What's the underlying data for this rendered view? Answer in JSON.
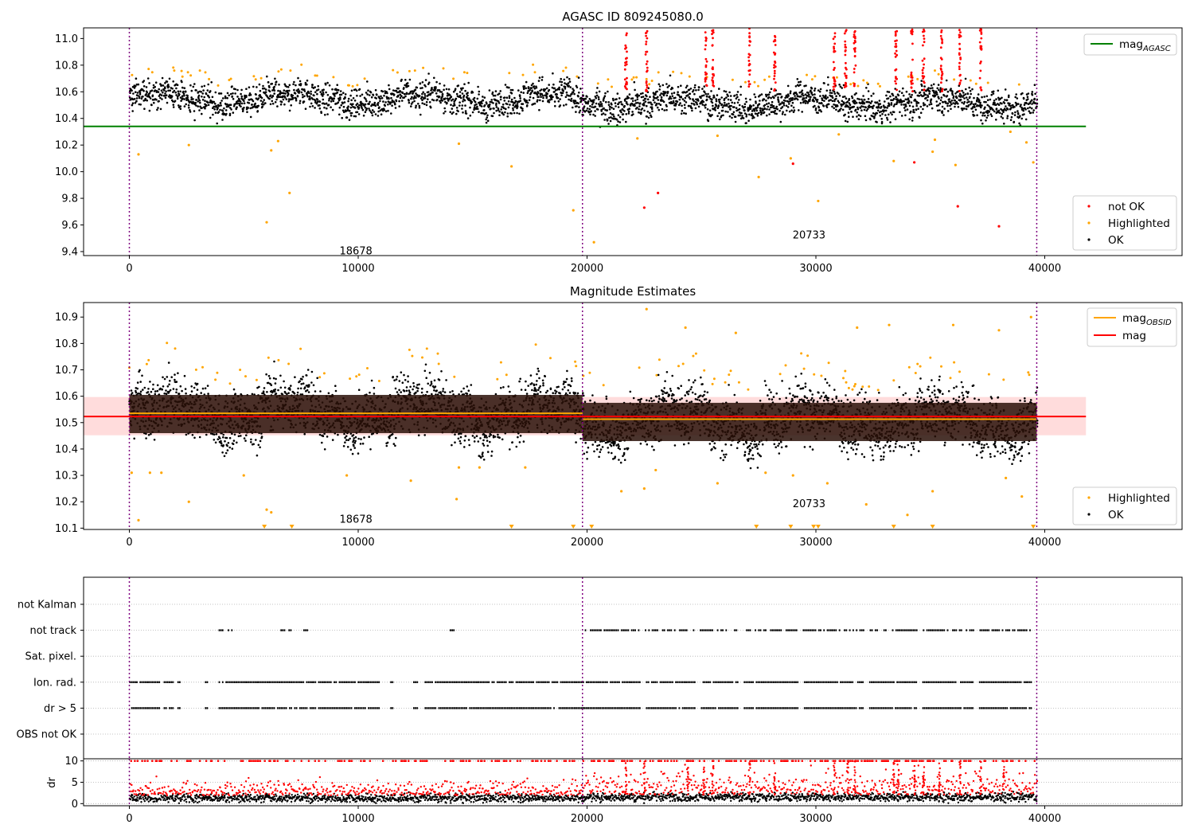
{
  "chart_data": [
    {
      "type": "scatter",
      "title": "AGASC ID 809245080.0",
      "xlim": [
        -2000,
        46000
      ],
      "ylim": [
        9.37,
        11.08
      ],
      "xticks": [
        0,
        10000,
        20000,
        30000,
        40000
      ],
      "yticks": [
        9.4,
        9.6,
        9.8,
        10.0,
        10.2,
        10.4,
        10.6,
        10.8,
        11.0
      ],
      "ytick_labels": [
        "9.4",
        "9.6",
        "9.8",
        "10.0",
        "10.2",
        "10.4",
        "10.6",
        "10.8",
        "11.0"
      ],
      "obsid_boundaries": [
        0,
        19800,
        39650
      ],
      "obsid_labels": [
        {
          "text": "18678",
          "x": 9900,
          "y": 9.38
        },
        {
          "text": "20733",
          "x": 29700,
          "y": 9.5
        }
      ],
      "reference_line": {
        "name": "mag",
        "subscript": "AGASC",
        "value": 10.34,
        "x_range": [
          -2000,
          41800
        ],
        "color": "#008000"
      },
      "bands": [
        {
          "x_range": [
            0,
            19800
          ],
          "median": 10.55,
          "spread": 0.1
        },
        {
          "x_range": [
            19800,
            39650
          ],
          "median": 10.52,
          "spread": 0.1
        }
      ],
      "red_excursions": [
        21700,
        22600,
        25200,
        25500,
        27100,
        28200,
        30800,
        31300,
        31700,
        33500,
        34200,
        34700,
        35500,
        36300,
        37200
      ],
      "outliers": {
        "highlighted": [
          [
            400,
            10.13
          ],
          [
            2600,
            10.2
          ],
          [
            6000,
            9.62
          ],
          [
            6200,
            10.16
          ],
          [
            7000,
            9.84
          ],
          [
            6500,
            10.23
          ],
          [
            14400,
            10.21
          ],
          [
            16700,
            10.04
          ],
          [
            19400,
            9.71
          ],
          [
            20300,
            9.47
          ],
          [
            22200,
            10.25
          ],
          [
            25700,
            10.27
          ],
          [
            27500,
            9.96
          ],
          [
            28900,
            10.1
          ],
          [
            30100,
            9.78
          ],
          [
            31000,
            10.28
          ],
          [
            33400,
            10.08
          ],
          [
            35200,
            10.24
          ],
          [
            35100,
            10.15
          ],
          [
            36100,
            10.05
          ],
          [
            38500,
            10.3
          ],
          [
            39200,
            10.22
          ],
          [
            39500,
            10.07
          ]
        ],
        "not_ok": [
          [
            22500,
            9.73
          ],
          [
            23100,
            9.84
          ],
          [
            29000,
            10.06
          ],
          [
            34300,
            10.07
          ],
          [
            36200,
            9.74
          ],
          [
            38000,
            9.59
          ]
        ]
      },
      "legend_upper": [
        {
          "label": "mag",
          "subscript": "AGASC",
          "color": "#008000"
        }
      ],
      "legend_lower": [
        {
          "label": "not OK",
          "color": "#ff0000"
        },
        {
          "label": "Highlighted",
          "color": "#ffa500"
        },
        {
          "label": "OK",
          "color": "#000000"
        }
      ]
    },
    {
      "type": "scatter",
      "title": "Magnitude Estimates",
      "xlim": [
        -2000,
        46000
      ],
      "ylim": [
        10.095,
        10.955
      ],
      "xticks": [
        0,
        10000,
        20000,
        30000,
        40000
      ],
      "yticks": [
        10.1,
        10.2,
        10.3,
        10.4,
        10.5,
        10.6,
        10.7,
        10.8,
        10.9
      ],
      "ytick_labels": [
        "10.1",
        "10.2",
        "10.3",
        "10.4",
        "10.5",
        "10.6",
        "10.7",
        "10.8",
        "10.9"
      ],
      "obsid_boundaries": [
        0,
        19800,
        39650
      ],
      "obsid_labels": [
        {
          "text": "18678",
          "x": 9900,
          "y": 10.12
        },
        {
          "text": "20733",
          "x": 29700,
          "y": 10.18
        }
      ],
      "mag_line": {
        "name": "mag",
        "value": 10.523,
        "band": [
          10.452,
          10.597
        ],
        "x_range": [
          -2000,
          41800
        ],
        "color": "#ff0000"
      },
      "obsid_mag": [
        {
          "x_range": [
            0,
            19800
          ],
          "value": 10.535
        },
        {
          "x_range": [
            19800,
            39650
          ],
          "value": 10.513
        }
      ],
      "bands": [
        {
          "x_range": [
            0,
            19800
          ],
          "median": 10.54,
          "spread": 0.1
        },
        {
          "x_range": [
            19800,
            39650
          ],
          "median": 10.51,
          "spread": 0.1
        }
      ],
      "outliers": {
        "highlighted": [
          [
            100,
            10.31
          ],
          [
            400,
            10.13
          ],
          [
            900,
            10.31
          ],
          [
            1400,
            10.31
          ],
          [
            2600,
            10.2
          ],
          [
            5000,
            10.3
          ],
          [
            6000,
            10.17
          ],
          [
            6200,
            10.16
          ],
          [
            9500,
            10.3
          ],
          [
            12300,
            10.28
          ],
          [
            14300,
            10.21
          ],
          [
            14400,
            10.33
          ],
          [
            15300,
            10.33
          ],
          [
            17300,
            10.33
          ],
          [
            21500,
            10.24
          ],
          [
            22500,
            10.25
          ],
          [
            23000,
            10.32
          ],
          [
            25700,
            10.27
          ],
          [
            27800,
            10.31
          ],
          [
            29000,
            10.3
          ],
          [
            30500,
            10.27
          ],
          [
            32200,
            10.19
          ],
          [
            34000,
            10.15
          ],
          [
            35100,
            10.24
          ],
          [
            38300,
            10.29
          ],
          [
            39000,
            10.22
          ],
          [
            22600,
            10.93
          ],
          [
            24300,
            10.86
          ],
          [
            26500,
            10.84
          ],
          [
            31800,
            10.86
          ],
          [
            33200,
            10.87
          ],
          [
            36000,
            10.87
          ],
          [
            38000,
            10.85
          ],
          [
            39400,
            10.9
          ]
        ],
        "below_axis": [
          5900,
          7100,
          16700,
          19400,
          20200,
          27400,
          28900,
          29900,
          30100,
          33400,
          35100,
          39500
        ]
      },
      "legend_upper": [
        {
          "label": "mag",
          "subscript": "OBSID",
          "color": "#ffa500"
        },
        {
          "label": "mag",
          "subscript": "",
          "color": "#ff0000"
        }
      ],
      "legend_lower": [
        {
          "label": "Highlighted",
          "color": "#ffa500"
        },
        {
          "label": "OK",
          "color": "#000000"
        }
      ]
    },
    {
      "type": "scatter",
      "xlim": [
        -2000,
        46000
      ],
      "xticks": [
        0,
        10000,
        20000,
        30000,
        40000
      ],
      "categories": [
        "not Kalman",
        "not track",
        "Sat. pixel.",
        "Ion. rad.",
        "dr > 5",
        "OBS not OK"
      ],
      "flag_segments": {
        "not track": [
          [
            3900,
            4100
          ],
          [
            4300,
            4500
          ],
          [
            6600,
            6800
          ],
          [
            6950,
            7100
          ],
          [
            7600,
            7800
          ],
          [
            14000,
            14200
          ],
          [
            19900,
            39400
          ]
        ],
        "Ion. rad.": [
          [
            0,
            1300
          ],
          [
            1500,
            1900
          ],
          [
            2100,
            2200
          ],
          [
            3300,
            3400
          ],
          [
            3900,
            10900
          ],
          [
            11400,
            11500
          ],
          [
            12400,
            12600
          ],
          [
            12900,
            19800
          ],
          [
            19800,
            39400
          ]
        ],
        "dr > 5": [
          [
            0,
            1300
          ],
          [
            1500,
            1900
          ],
          [
            2100,
            2200
          ],
          [
            3300,
            3400
          ],
          [
            3900,
            10900
          ],
          [
            11400,
            11500
          ],
          [
            12400,
            12600
          ],
          [
            12900,
            19800
          ],
          [
            19800,
            39400
          ]
        ]
      },
      "flag_gaps": [
        22400,
        24800,
        26700,
        29300,
        32200,
        34500,
        37000
      ]
    },
    {
      "type": "scatter",
      "xlim": [
        -2000,
        46000
      ],
      "ylim": [
        -0.5,
        10.5
      ],
      "xticks": [
        0,
        10000,
        20000,
        30000,
        40000
      ],
      "xtick_labels": [
        "0",
        "10000",
        "20000",
        "30000",
        "40000"
      ],
      "yticks": [
        0,
        5,
        10
      ],
      "ytick_labels": [
        "0",
        "5",
        "10"
      ],
      "ylabel": "dr",
      "saturation": 10,
      "segments": [
        {
          "x_range": [
            0,
            19800
          ],
          "median": 1.3,
          "red_spread": 2.5
        },
        {
          "x_range": [
            19800,
            39650
          ],
          "median": 1.5,
          "red_spread": 4.0
        }
      ],
      "spikes": [
        21700,
        22500,
        24400,
        25100,
        25500,
        27100,
        28200,
        30800,
        31400,
        31700,
        33400,
        33600,
        34300,
        34700,
        35400,
        36300,
        37200,
        38200
      ]
    }
  ]
}
